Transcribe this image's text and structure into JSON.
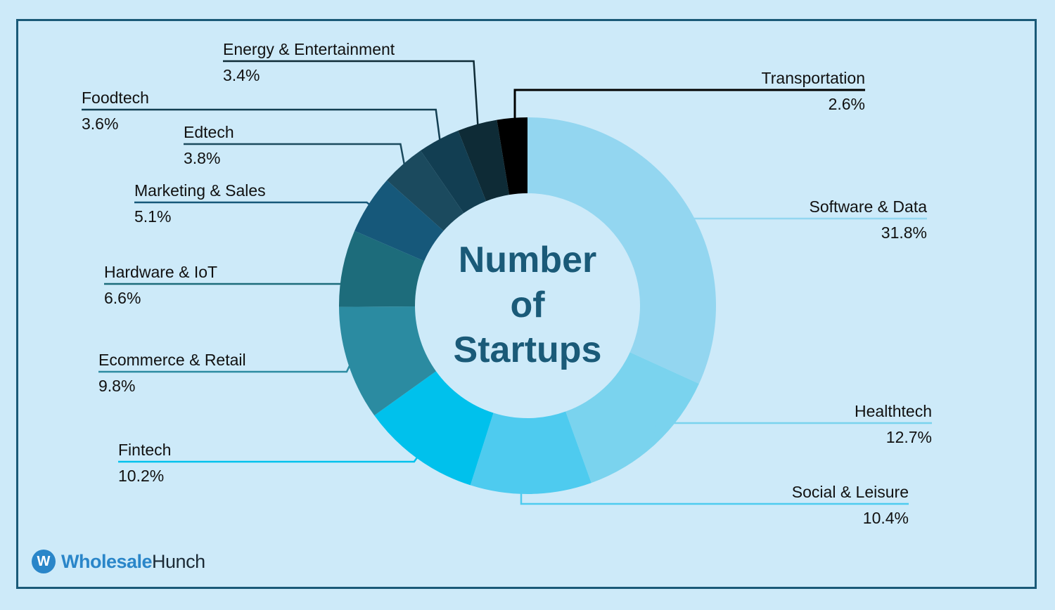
{
  "colors": {
    "background": "#cdeaf9",
    "frame": "#1a5a78",
    "center_text": "#1a5a78",
    "logo_blue": "#2a86c9"
  },
  "chart_data": {
    "type": "pie",
    "title": "Number of Startups",
    "title_lines": [
      "Number",
      "of",
      "Startups"
    ],
    "slices": [
      {
        "label": "Software & Data",
        "value": 31.8,
        "display": "31.8%",
        "color": "#93d6f0"
      },
      {
        "label": "Healthtech",
        "value": 12.7,
        "display": "12.7%",
        "color": "#7ad3ee"
      },
      {
        "label": "Social & Leisure",
        "value": 10.4,
        "display": "10.4%",
        "color": "#4ecbef"
      },
      {
        "label": "Fintech",
        "value": 10.2,
        "display": "10.2%",
        "color": "#00c1ec"
      },
      {
        "label": "Ecommerce & Retail",
        "value": 9.8,
        "display": "9.8%",
        "color": "#2b8ba1"
      },
      {
        "label": "Hardware & IoT",
        "value": 6.6,
        "display": "6.6%",
        "color": "#1d6c7b"
      },
      {
        "label": "Marketing & Sales",
        "value": 5.1,
        "display": "5.1%",
        "color": "#16587a"
      },
      {
        "label": "Edtech",
        "value": 3.8,
        "display": "3.8%",
        "color": "#1b4a5e"
      },
      {
        "label": "Foodtech",
        "value": 3.6,
        "display": "3.6%",
        "color": "#123e52"
      },
      {
        "label": "Energy & Entertainment",
        "value": 3.4,
        "display": "3.4%",
        "color": "#0e2b36"
      },
      {
        "label": "Transportation",
        "value": 2.6,
        "display": "2.6%",
        "color": "#000000"
      }
    ]
  },
  "logo": {
    "mark": "W",
    "word1": "Wholesale",
    "word2": "Hunch"
  }
}
